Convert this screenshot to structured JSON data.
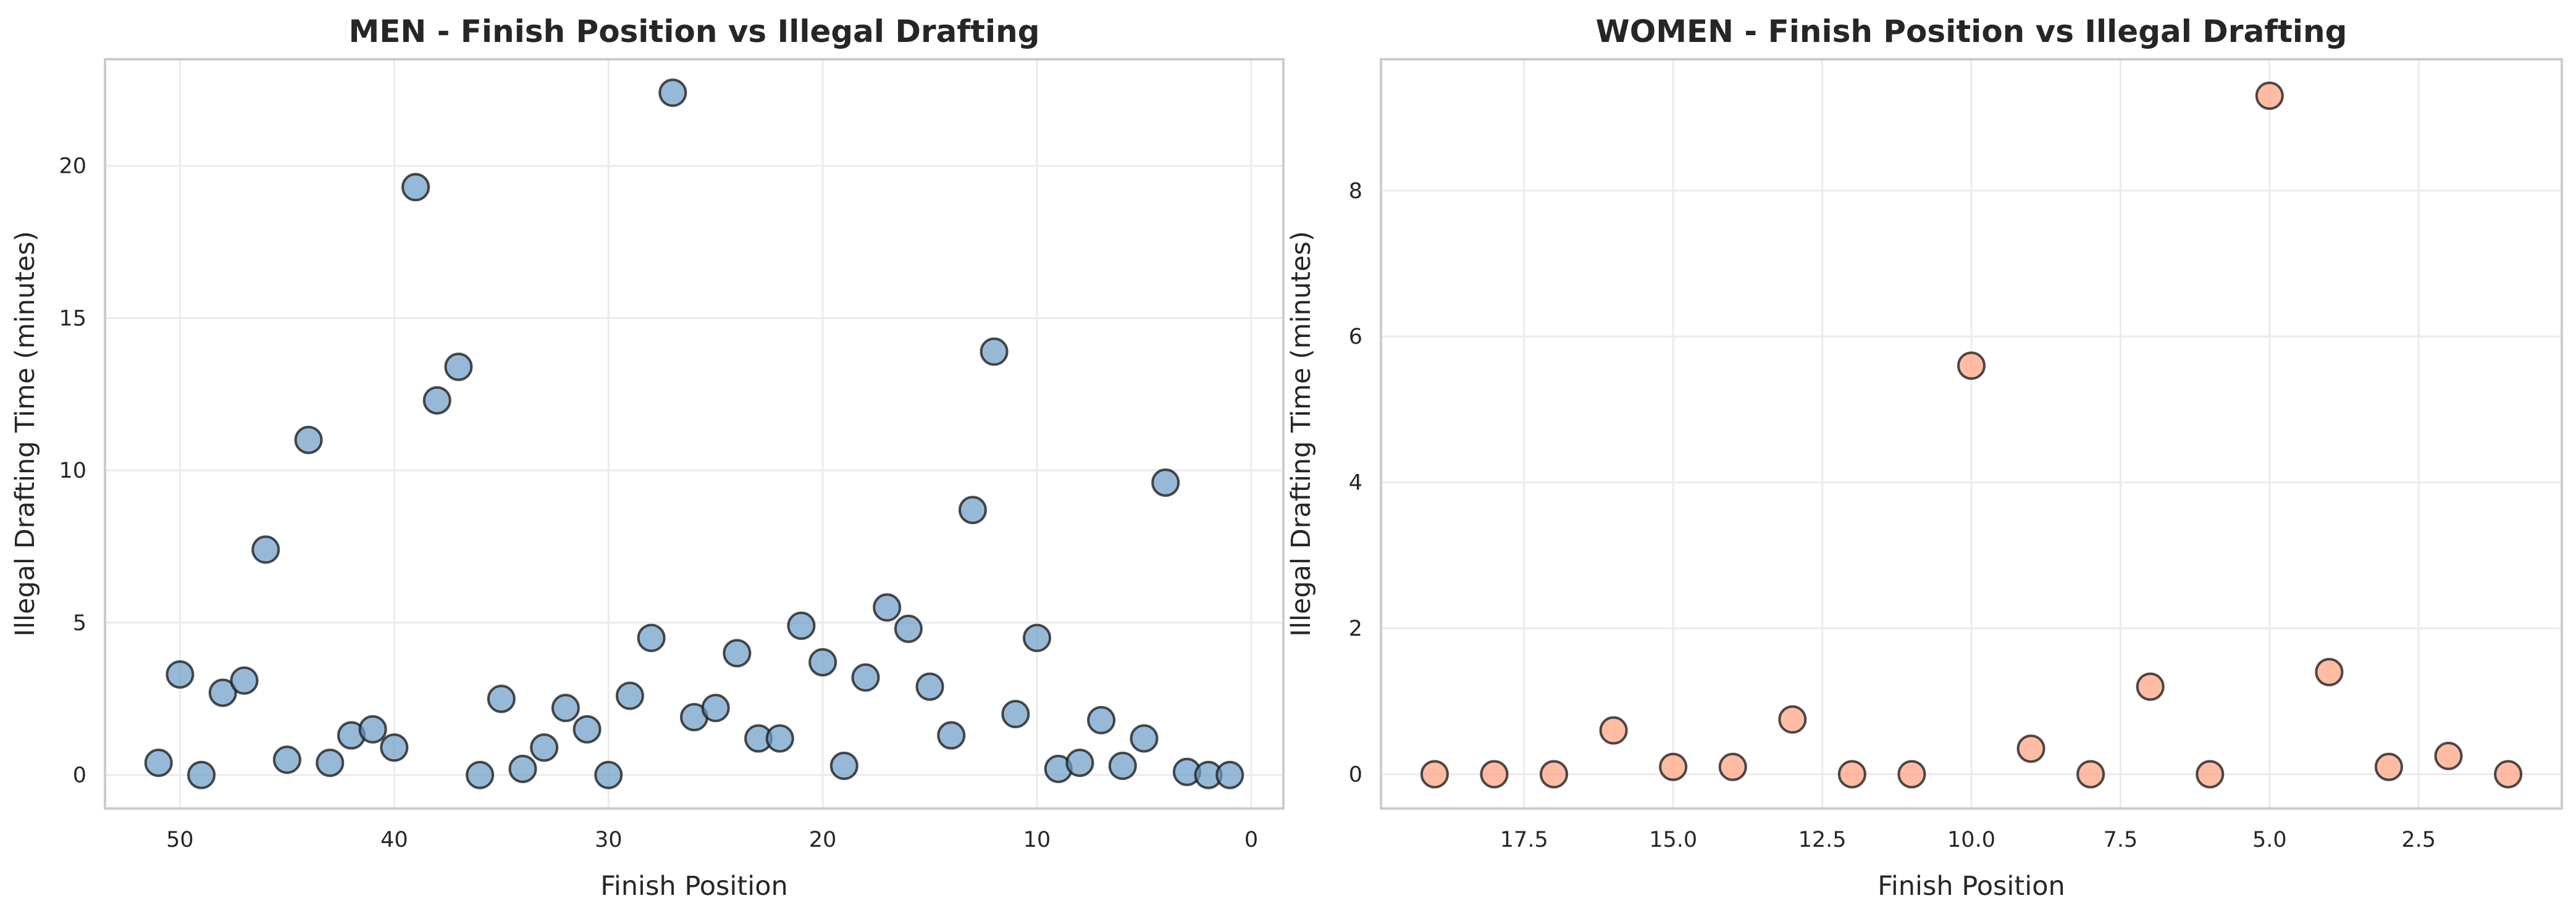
{
  "chart_data": [
    {
      "type": "scatter",
      "title": "MEN - Finish Position vs Illegal Drafting",
      "xlabel": "Finish Position",
      "ylabel": "Illegal Drafting Time (minutes)",
      "x_inverted": true,
      "xlim": [
        53.5,
        -1.5
      ],
      "ylim": [
        -1.1,
        23.5
      ],
      "xticks": [
        50,
        40,
        30,
        20,
        10,
        0
      ],
      "xtick_labels": [
        "50",
        "40",
        "30",
        "20",
        "10",
        "0"
      ],
      "yticks": [
        0,
        5,
        10,
        15,
        20
      ],
      "ytick_labels": [
        "0",
        "5",
        "10",
        "15",
        "20"
      ],
      "grid": true,
      "color": "#6a9bc8",
      "points": [
        {
          "x": 51,
          "y": 0.4
        },
        {
          "x": 50,
          "y": 3.3
        },
        {
          "x": 49,
          "y": 0.0
        },
        {
          "x": 48,
          "y": 2.7
        },
        {
          "x": 47,
          "y": 3.1
        },
        {
          "x": 46,
          "y": 7.4
        },
        {
          "x": 45,
          "y": 0.5
        },
        {
          "x": 44,
          "y": 11.0
        },
        {
          "x": 43,
          "y": 0.4
        },
        {
          "x": 42,
          "y": 1.3
        },
        {
          "x": 41,
          "y": 1.5
        },
        {
          "x": 40,
          "y": 0.9
        },
        {
          "x": 39,
          "y": 19.3
        },
        {
          "x": 38,
          "y": 12.3
        },
        {
          "x": 37,
          "y": 13.4
        },
        {
          "x": 36,
          "y": 0.0
        },
        {
          "x": 35,
          "y": 2.5
        },
        {
          "x": 34,
          "y": 0.2
        },
        {
          "x": 33,
          "y": 0.9
        },
        {
          "x": 32,
          "y": 2.2
        },
        {
          "x": 31,
          "y": 1.5
        },
        {
          "x": 30,
          "y": 0.0
        },
        {
          "x": 29,
          "y": 2.6
        },
        {
          "x": 28,
          "y": 4.5
        },
        {
          "x": 27,
          "y": 22.4
        },
        {
          "x": 26,
          "y": 1.9
        },
        {
          "x": 25,
          "y": 2.2
        },
        {
          "x": 24,
          "y": 4.0
        },
        {
          "x": 23,
          "y": 1.2
        },
        {
          "x": 22,
          "y": 1.2
        },
        {
          "x": 21,
          "y": 4.9
        },
        {
          "x": 20,
          "y": 3.7
        },
        {
          "x": 19,
          "y": 0.3
        },
        {
          "x": 18,
          "y": 3.2
        },
        {
          "x": 17,
          "y": 5.5
        },
        {
          "x": 16,
          "y": 4.8
        },
        {
          "x": 15,
          "y": 2.9
        },
        {
          "x": 14,
          "y": 1.3
        },
        {
          "x": 13,
          "y": 8.7
        },
        {
          "x": 12,
          "y": 13.9
        },
        {
          "x": 11,
          "y": 2.0
        },
        {
          "x": 10,
          "y": 4.5
        },
        {
          "x": 9,
          "y": 0.2
        },
        {
          "x": 8,
          "y": 0.4
        },
        {
          "x": 7,
          "y": 1.8
        },
        {
          "x": 6,
          "y": 0.3
        },
        {
          "x": 5,
          "y": 1.2
        },
        {
          "x": 4,
          "y": 9.6
        },
        {
          "x": 3,
          "y": 0.1
        },
        {
          "x": 2,
          "y": 0.0
        },
        {
          "x": 1,
          "y": 0.0
        }
      ]
    },
    {
      "type": "scatter",
      "title": "WOMEN - Finish Position vs Illegal Drafting",
      "xlabel": "Finish Position",
      "ylabel": "Illegal Drafting Time (minutes)",
      "x_inverted": true,
      "xlim": [
        19.9,
        0.1
      ],
      "ylim": [
        -0.47,
        9.8
      ],
      "xticks": [
        17.5,
        15.0,
        12.5,
        10.0,
        7.5,
        5.0,
        2.5
      ],
      "xtick_labels": [
        "17.5",
        "15.0",
        "12.5",
        "10.0",
        "7.5",
        "5.0",
        "2.5"
      ],
      "yticks": [
        0,
        2,
        4,
        6,
        8
      ],
      "ytick_labels": [
        "0",
        "2",
        "4",
        "6",
        "8"
      ],
      "grid": true,
      "color": "#ff9f7f",
      "points": [
        {
          "x": 19,
          "y": 0.0
        },
        {
          "x": 18,
          "y": 0.0
        },
        {
          "x": 17,
          "y": 0.0
        },
        {
          "x": 16,
          "y": 0.6
        },
        {
          "x": 15,
          "y": 0.1
        },
        {
          "x": 14,
          "y": 0.1
        },
        {
          "x": 13,
          "y": 0.75
        },
        {
          "x": 12,
          "y": 0.0
        },
        {
          "x": 11,
          "y": 0.0
        },
        {
          "x": 10,
          "y": 5.6
        },
        {
          "x": 9,
          "y": 0.35
        },
        {
          "x": 8,
          "y": 0.0
        },
        {
          "x": 7,
          "y": 1.2
        },
        {
          "x": 6,
          "y": 0.0
        },
        {
          "x": 5,
          "y": 9.3
        },
        {
          "x": 4,
          "y": 1.4
        },
        {
          "x": 3,
          "y": 0.1
        },
        {
          "x": 2,
          "y": 0.25
        },
        {
          "x": 1,
          "y": 0.0
        }
      ]
    }
  ]
}
